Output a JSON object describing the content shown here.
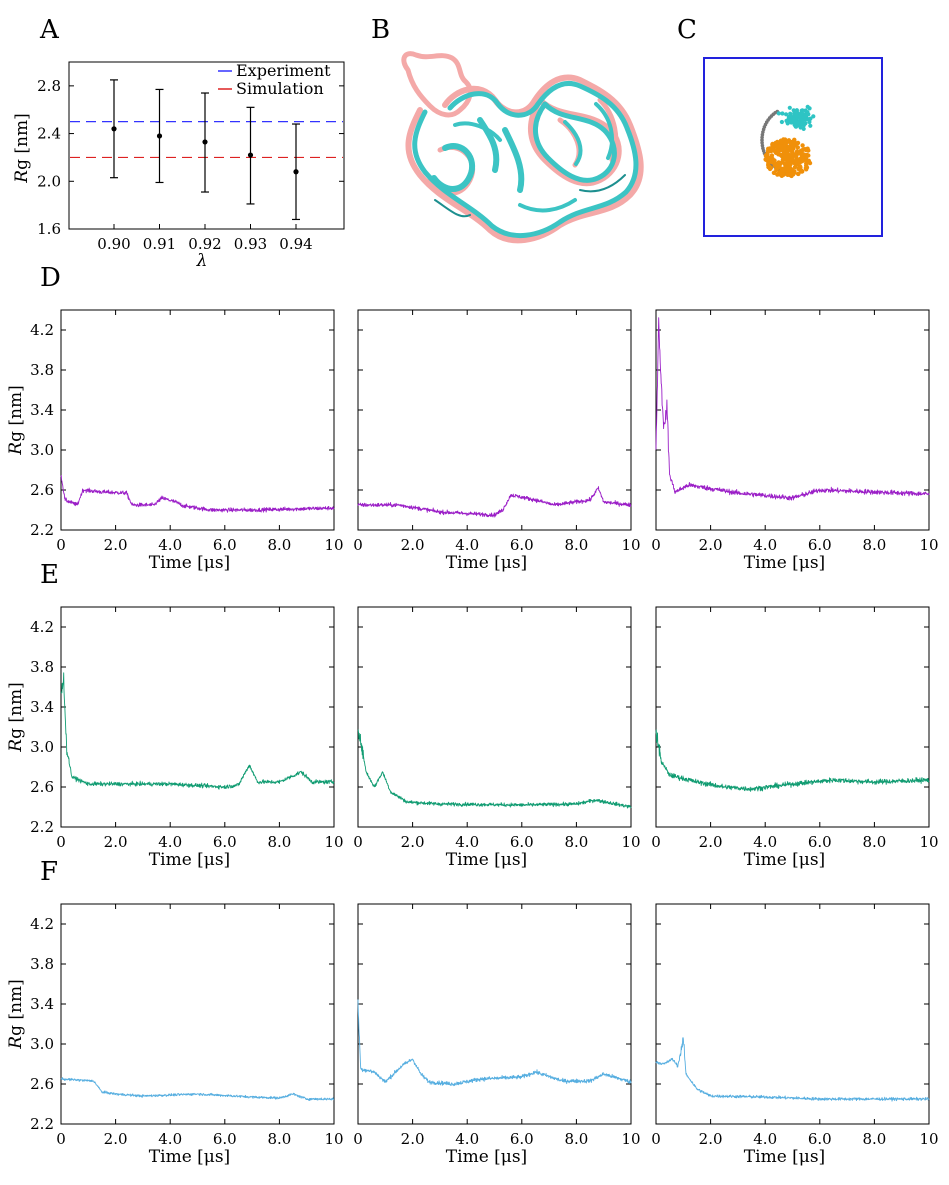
{
  "panels": {
    "A": {
      "label": "A"
    },
    "B": {
      "label": "B"
    },
    "C": {
      "label": "C"
    },
    "D": {
      "label": "D"
    },
    "E": {
      "label": "E"
    },
    "F": {
      "label": "F"
    }
  },
  "structure_colors": {
    "experiment_structure": "#f4a9a8",
    "simulation_structure": "#3cc4c4",
    "box": "#2222dd",
    "cyan_domain": "#2ec4c4",
    "orange_domain": "#f0900a",
    "linker": "#777777"
  },
  "chart_data": [
    {
      "id": "A",
      "type": "scatter",
      "xlabel": "λ",
      "ylabel_italic": "R",
      "ylabel_rest": "g [nm]",
      "ylim": [
        1.6,
        3.0
      ],
      "yticks": [
        "1.6",
        "2.0",
        "2.4",
        "2.8"
      ],
      "xticks": [
        "0.90",
        "0.91",
        "0.92",
        "0.93",
        "0.94"
      ],
      "points": [
        {
          "x": "0.90",
          "y": 2.44,
          "err_low": 2.03,
          "err_high": 2.85
        },
        {
          "x": "0.91",
          "y": 2.38,
          "err_low": 1.99,
          "err_high": 2.77
        },
        {
          "x": "0.92",
          "y": 2.33,
          "err_low": 1.91,
          "err_high": 2.74
        },
        {
          "x": "0.93",
          "y": 2.22,
          "err_low": 1.81,
          "err_high": 2.62
        },
        {
          "x": "0.94",
          "y": 2.08,
          "err_low": 1.68,
          "err_high": 2.48
        }
      ],
      "reference_lines": [
        {
          "name": "Experiment",
          "y": 2.5,
          "color": "#3333ff",
          "style": "dashed"
        },
        {
          "name": "Simulation",
          "y": 2.2,
          "color": "#dd2222",
          "style": "dashed"
        }
      ],
      "legend_position": "top-right",
      "grid": false
    }
  ],
  "timeseries": {
    "xlabel": "Time [μs]",
    "ylabel_italic": "R",
    "ylabel_rest": "g [nm]",
    "xlim": [
      0,
      10
    ],
    "ylim": [
      2.2,
      4.4
    ],
    "xticks": [
      "0",
      "2.0",
      "4.0",
      "6.0",
      "8.0",
      "10"
    ],
    "yticks": [
      "2.2",
      "2.6",
      "3.0",
      "3.4",
      "3.8",
      "4.2"
    ],
    "rows": [
      {
        "id": "D",
        "color": "#9b1fc7",
        "series": [
          {
            "anchors": [
              [
                0,
                2.75
              ],
              [
                0.15,
                2.5
              ],
              [
                0.6,
                2.45
              ],
              [
                0.8,
                2.6
              ],
              [
                1.5,
                2.58
              ],
              [
                2.4,
                2.57
              ],
              [
                2.6,
                2.45
              ],
              [
                3.4,
                2.45
              ],
              [
                3.7,
                2.52
              ],
              [
                4.2,
                2.48
              ],
              [
                4.5,
                2.44
              ],
              [
                5.5,
                2.4
              ],
              [
                7.0,
                2.4
              ],
              [
                8.5,
                2.41
              ],
              [
                10,
                2.42
              ]
            ],
            "noise": 0.02
          },
          {
            "anchors": [
              [
                0,
                2.45
              ],
              [
                1.5,
                2.45
              ],
              [
                3.0,
                2.38
              ],
              [
                5.0,
                2.35
              ],
              [
                5.3,
                2.4
              ],
              [
                5.6,
                2.55
              ],
              [
                6.5,
                2.5
              ],
              [
                7.2,
                2.45
              ],
              [
                8.5,
                2.5
              ],
              [
                8.8,
                2.62
              ],
              [
                9.0,
                2.48
              ],
              [
                10,
                2.45
              ]
            ],
            "noise": 0.02
          },
          {
            "anchors": [
              [
                0,
                3.0
              ],
              [
                0.1,
                4.3
              ],
              [
                0.2,
                3.6
              ],
              [
                0.3,
                3.2
              ],
              [
                0.4,
                3.45
              ],
              [
                0.5,
                2.75
              ],
              [
                0.7,
                2.58
              ],
              [
                1.2,
                2.65
              ],
              [
                3.0,
                2.57
              ],
              [
                5.0,
                2.52
              ],
              [
                6.0,
                2.6
              ],
              [
                8.0,
                2.58
              ],
              [
                10,
                2.56
              ]
            ],
            "noise": 0.025
          }
        ]
      },
      {
        "id": "E",
        "color": "#119c72",
        "series": [
          {
            "anchors": [
              [
                0,
                3.5
              ],
              [
                0.1,
                3.7
              ],
              [
                0.2,
                3.0
              ],
              [
                0.4,
                2.7
              ],
              [
                1.0,
                2.63
              ],
              [
                4.0,
                2.63
              ],
              [
                6.0,
                2.6
              ],
              [
                6.5,
                2.62
              ],
              [
                6.9,
                2.82
              ],
              [
                7.2,
                2.65
              ],
              [
                8.0,
                2.65
              ],
              [
                8.8,
                2.75
              ],
              [
                9.2,
                2.65
              ],
              [
                10,
                2.65
              ]
            ],
            "noise": 0.02
          },
          {
            "anchors": [
              [
                0,
                3.2
              ],
              [
                0.3,
                2.75
              ],
              [
                0.6,
                2.6
              ],
              [
                0.9,
                2.75
              ],
              [
                1.2,
                2.55
              ],
              [
                1.8,
                2.45
              ],
              [
                3.0,
                2.43
              ],
              [
                6.0,
                2.42
              ],
              [
                8.0,
                2.43
              ],
              [
                8.7,
                2.47
              ],
              [
                10,
                2.4
              ]
            ],
            "noise": 0.018
          },
          {
            "anchors": [
              [
                0,
                3.15
              ],
              [
                0.2,
                2.85
              ],
              [
                0.5,
                2.72
              ],
              [
                1.5,
                2.65
              ],
              [
                2.5,
                2.6
              ],
              [
                3.5,
                2.58
              ],
              [
                5.0,
                2.63
              ],
              [
                6.5,
                2.67
              ],
              [
                8.0,
                2.65
              ],
              [
                10,
                2.67
              ]
            ],
            "noise": 0.025
          }
        ]
      },
      {
        "id": "F",
        "color": "#56aee0",
        "series": [
          {
            "anchors": [
              [
                0,
                2.65
              ],
              [
                1.2,
                2.63
              ],
              [
                1.5,
                2.52
              ],
              [
                2.0,
                2.5
              ],
              [
                3.0,
                2.48
              ],
              [
                5.0,
                2.5
              ],
              [
                7.0,
                2.47
              ],
              [
                8.0,
                2.46
              ],
              [
                8.5,
                2.5
              ],
              [
                9.0,
                2.45
              ],
              [
                10,
                2.45
              ]
            ],
            "noise": 0.012
          },
          {
            "anchors": [
              [
                0,
                3.4
              ],
              [
                0.1,
                2.75
              ],
              [
                0.6,
                2.72
              ],
              [
                1.0,
                2.62
              ],
              [
                1.6,
                2.78
              ],
              [
                2.0,
                2.85
              ],
              [
                2.3,
                2.7
              ],
              [
                2.6,
                2.62
              ],
              [
                3.5,
                2.6
              ],
              [
                4.5,
                2.65
              ],
              [
                6.0,
                2.67
              ],
              [
                6.5,
                2.72
              ],
              [
                7.5,
                2.63
              ],
              [
                8.5,
                2.63
              ],
              [
                9.0,
                2.7
              ],
              [
                10,
                2.62
              ]
            ],
            "noise": 0.02
          },
          {
            "anchors": [
              [
                0,
                2.82
              ],
              [
                0.3,
                2.8
              ],
              [
                0.6,
                2.85
              ],
              [
                0.8,
                2.78
              ],
              [
                1.0,
                3.05
              ],
              [
                1.1,
                2.7
              ],
              [
                1.5,
                2.55
              ],
              [
                2.0,
                2.48
              ],
              [
                4.0,
                2.47
              ],
              [
                6.0,
                2.45
              ],
              [
                8.0,
                2.45
              ],
              [
                10,
                2.45
              ]
            ],
            "noise": 0.015
          }
        ]
      }
    ]
  }
}
